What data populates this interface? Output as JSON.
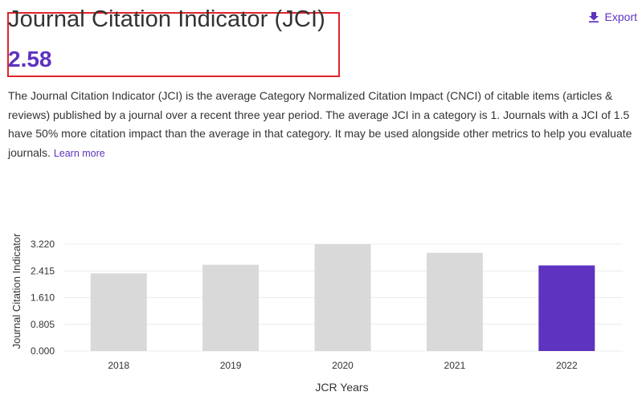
{
  "header": {
    "title": "Journal Citation Indicator (JCI)",
    "value": "2.58",
    "export_label": "Export",
    "export_icon": "download-icon"
  },
  "description": {
    "text": "The Journal Citation Indicator (JCI) is the average Category Normalized Citation Impact (CNCI) of citable items (articles & reviews) published by a journal over a recent three year period. The average JCI in a category is 1. Journals with a JCI of 1.5 have 50% more citation impact than the average in that category. It may be used alongside other metrics to help you evaluate journals.",
    "learn_more": "Learn more"
  },
  "colors": {
    "accent": "#5e33bf",
    "bar_default": "#d9d9d9",
    "bar_highlight": "#5e33bf",
    "highlight_box": "#e0242c"
  },
  "chart_data": {
    "type": "bar",
    "categories": [
      "2018",
      "2019",
      "2020",
      "2021",
      "2022"
    ],
    "values": [
      2.34,
      2.6,
      3.22,
      2.96,
      2.58
    ],
    "highlight_index": 4,
    "xlabel": "JCR Years",
    "ylabel": "Journal Citation Indicator",
    "yticks": [
      "0.000",
      "0.805",
      "1.610",
      "2.415",
      "3.220"
    ],
    "ylim": [
      0,
      3.22
    ],
    "grid": true
  }
}
